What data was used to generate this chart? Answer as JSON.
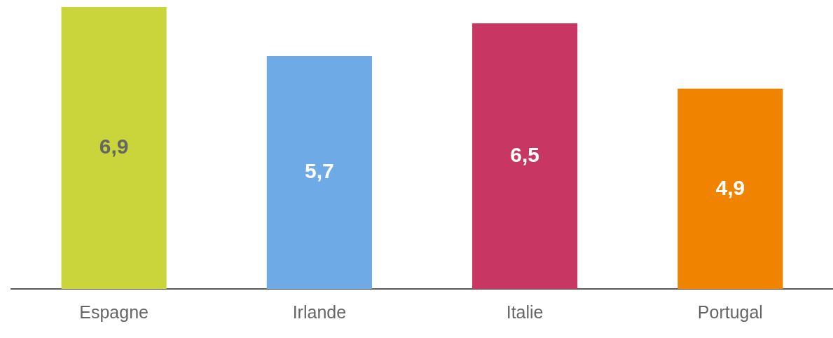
{
  "chart_data": {
    "type": "bar",
    "categories": [
      "Espagne",
      "Irlande",
      "Italie",
      "Portugal"
    ],
    "values": [
      6.9,
      5.7,
      6.5,
      4.9
    ],
    "colors": [
      "#c9d53b",
      "#6daae6",
      "#c83763",
      "#f08300"
    ],
    "value_labels": [
      "6,9",
      "5,7",
      "6,5",
      "4,9"
    ]
  }
}
